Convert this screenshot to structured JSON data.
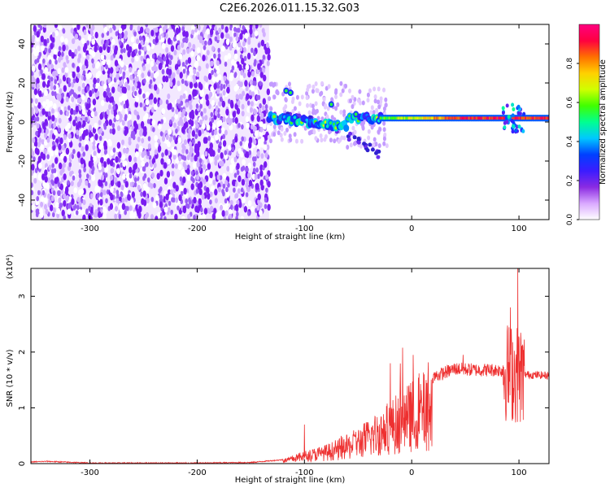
{
  "title": "C2E6.2026.011.15.32.G03",
  "chart_data": [
    {
      "type": "heatmap",
      "xlabel": "Height of straight line (km)",
      "ylabel": "Frequency (Hz)",
      "xlim": [
        -355,
        128
      ],
      "ylim": [
        -50,
        50
      ],
      "x_ticks": [
        -300,
        -200,
        -100,
        0,
        100
      ],
      "y_ticks": [
        -40,
        -20,
        0,
        20,
        40
      ],
      "colorbar": {
        "label": "Normalized spectral amplitude",
        "range": [
          0,
          1
        ],
        "ticks": [
          0.0,
          0.2,
          0.4,
          0.6,
          0.8
        ],
        "colors": [
          "#ffffff",
          "#d9a8ff",
          "#8a2be2",
          "#3b1cff",
          "#0040ff",
          "#00c8ff",
          "#00ff90",
          "#40ff00",
          "#d0ff00",
          "#ffd000",
          "#ff7000",
          "#ff0040",
          "#ff0080"
        ]
      },
      "regions": [
        {
          "name": "noise",
          "x_range": [
            -355,
            -133
          ],
          "freq_range": [
            -50,
            50
          ],
          "amplitude": 0.1
        },
        {
          "name": "signal",
          "x_range": [
            -133,
            128
          ],
          "freq_center": 2,
          "amplitude_max": 1.0
        },
        {
          "name": "descending branch",
          "x_range": [
            -130,
            -30
          ],
          "freq_range": [
            -17,
            3
          ]
        }
      ]
    },
    {
      "type": "line",
      "xlabel": "Height of straight line (km)",
      "ylabel": "SNR (10 * v/v)",
      "y_multiplier": "(x10⁴)",
      "xlim": [
        -355,
        128
      ],
      "ylim": [
        0,
        3.5
      ],
      "x_ticks": [
        -300,
        -200,
        -100,
        0,
        100
      ],
      "y_ticks": [
        0,
        1,
        2,
        3
      ],
      "series": [
        {
          "color": "#ee3030",
          "envelope": [
            {
              "x": -355,
              "y": 0.03
            },
            {
              "x": -340,
              "y": 0.04
            },
            {
              "x": -300,
              "y": 0.01
            },
            {
              "x": -250,
              "y": 0.01
            },
            {
              "x": -200,
              "y": 0.01
            },
            {
              "x": -150,
              "y": 0.02
            },
            {
              "x": -120,
              "y": 0.07
            },
            {
              "x": -100,
              "y": 0.2
            },
            {
              "x": -80,
              "y": 0.3
            },
            {
              "x": -60,
              "y": 0.45
            },
            {
              "x": -40,
              "y": 0.7
            },
            {
              "x": -20,
              "y": 1.0
            },
            {
              "x": 0,
              "y": 1.3
            },
            {
              "x": 20,
              "y": 1.55
            },
            {
              "x": 40,
              "y": 1.7
            },
            {
              "x": 60,
              "y": 1.68
            },
            {
              "x": 80,
              "y": 1.68
            },
            {
              "x": 100,
              "y": 1.6
            },
            {
              "x": 128,
              "y": 1.58
            }
          ],
          "peaks": [
            {
              "x": -100,
              "y": 0.7
            },
            {
              "x": -20,
              "y": 1.8
            },
            {
              "x": 48,
              "y": 1.95
            },
            {
              "x": 92,
              "y": 2.8
            },
            {
              "x": 99,
              "y": 3.5
            }
          ]
        }
      ]
    }
  ]
}
